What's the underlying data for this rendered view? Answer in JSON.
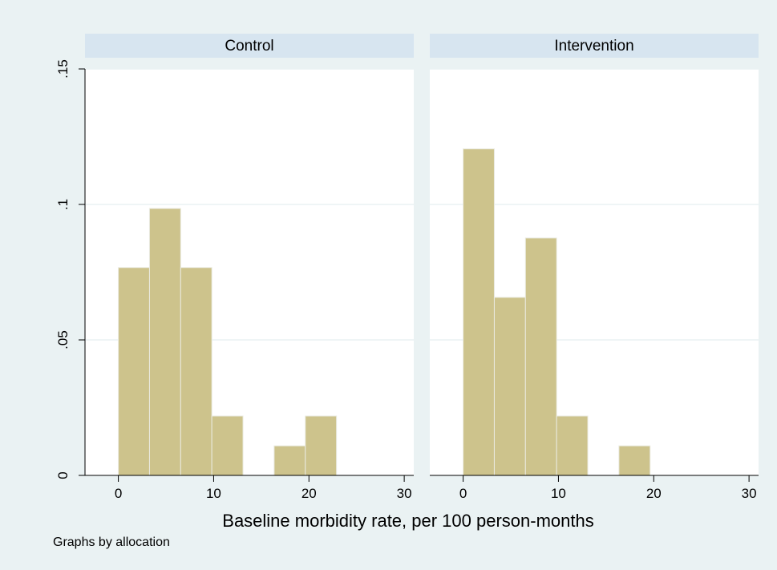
{
  "chart_data": {
    "type": "bar",
    "subtype": "histogram",
    "xlabel": "Baseline morbidity rate, per 100 person-months",
    "ylabel": "",
    "xlim": [
      -3.5,
      31
    ],
    "ylim": [
      0,
      0.15
    ],
    "xticks": [
      "0",
      "10",
      "20",
      "30"
    ],
    "xtick_values": [
      0,
      10,
      20,
      30
    ],
    "yticks": [
      "0",
      ".05",
      ".1",
      ".15"
    ],
    "ytick_values": [
      0,
      0.05,
      0.1,
      0.15
    ],
    "grid": true,
    "bar_color": "#cdc38c",
    "bin_width": 3.27,
    "panels": [
      {
        "title": "Control",
        "bins": [
          {
            "start": 0.0,
            "end": 3.27,
            "density": 0.0767
          },
          {
            "start": 3.27,
            "end": 6.54,
            "density": 0.0985
          },
          {
            "start": 6.54,
            "end": 9.81,
            "density": 0.0767
          },
          {
            "start": 9.81,
            "end": 13.08,
            "density": 0.0219
          },
          {
            "start": 16.35,
            "end": 19.62,
            "density": 0.0109
          },
          {
            "start": 19.62,
            "end": 22.89,
            "density": 0.0219
          }
        ]
      },
      {
        "title": "Intervention",
        "bins": [
          {
            "start": 0.0,
            "end": 3.27,
            "density": 0.1205
          },
          {
            "start": 3.27,
            "end": 6.54,
            "density": 0.0657
          },
          {
            "start": 6.54,
            "end": 9.81,
            "density": 0.0876
          },
          {
            "start": 9.81,
            "end": 13.08,
            "density": 0.0219
          },
          {
            "start": 16.35,
            "end": 19.62,
            "density": 0.0109
          }
        ]
      }
    ]
  },
  "note": "Graphs by allocation"
}
